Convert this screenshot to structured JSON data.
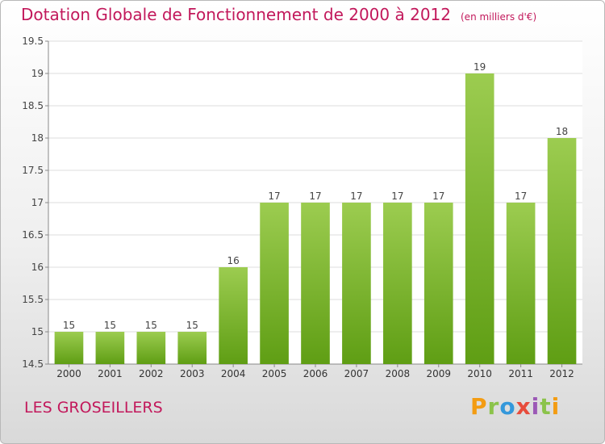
{
  "header": {
    "title": "Dotation Globale de Fonctionnement de 2000 à 2012",
    "subtitle": "(en milliers d'€)"
  },
  "footer": {
    "commune": "LES GROSEILLERS",
    "logo_text": "Proxiti",
    "logo_colors": [
      "#f39c12",
      "#8bc34a",
      "#3498db",
      "#e74c3c",
      "#9b59b6",
      "#8bc34a",
      "#f39c12"
    ]
  },
  "colors": {
    "title": "#c2185b",
    "bar_top": "#9ccc50",
    "bar_bottom": "#5f9e14",
    "grid": "#dddddd",
    "axis": "#888888"
  },
  "chart_data": {
    "type": "bar",
    "title": "Dotation Globale de Fonctionnement de 2000 à 2012",
    "subtitle": "(en milliers d'€)",
    "categories": [
      "2000",
      "2001",
      "2002",
      "2003",
      "2004",
      "2005",
      "2006",
      "2007",
      "2008",
      "2009",
      "2010",
      "2011",
      "2012"
    ],
    "values": [
      15,
      15,
      15,
      15,
      16,
      17,
      17,
      17,
      17,
      17,
      19,
      17,
      18
    ],
    "data_labels": [
      "15",
      "15",
      "15",
      "15",
      "16",
      "17",
      "17",
      "17",
      "17",
      "17",
      "19",
      "17",
      "18"
    ],
    "ylim": [
      14.5,
      19.5
    ],
    "yticks": [
      14.5,
      15,
      15.5,
      16,
      16.5,
      17,
      17.5,
      18,
      18.5,
      19,
      19.5
    ],
    "ytick_labels": [
      "14.5",
      "15",
      "15.5",
      "16",
      "16.5",
      "17",
      "17.5",
      "18",
      "18.5",
      "19",
      "19.5"
    ],
    "xlabel": "",
    "ylabel": "",
    "grid": true,
    "legend": "none"
  }
}
